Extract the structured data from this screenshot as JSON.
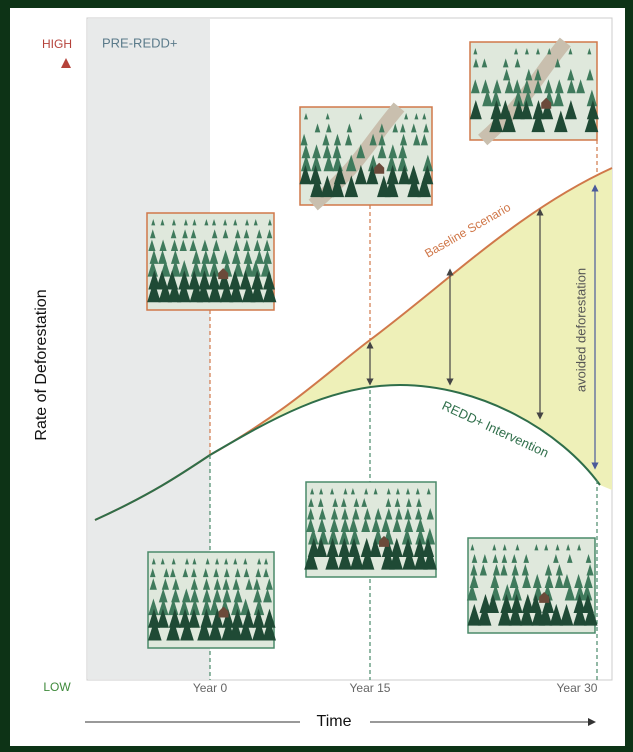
{
  "axis": {
    "high": "HIGH",
    "low": "LOW",
    "y_label": "Rate of Deforestation",
    "x_label": "Time"
  },
  "region": "PRE-REDD+",
  "curves": {
    "baseline": "Baseline Scenario",
    "intervention": "REDD+ Intervention"
  },
  "annotation": "avoided deforestation",
  "years": [
    "Year 0",
    "Year 15",
    "Year 30"
  ]
}
